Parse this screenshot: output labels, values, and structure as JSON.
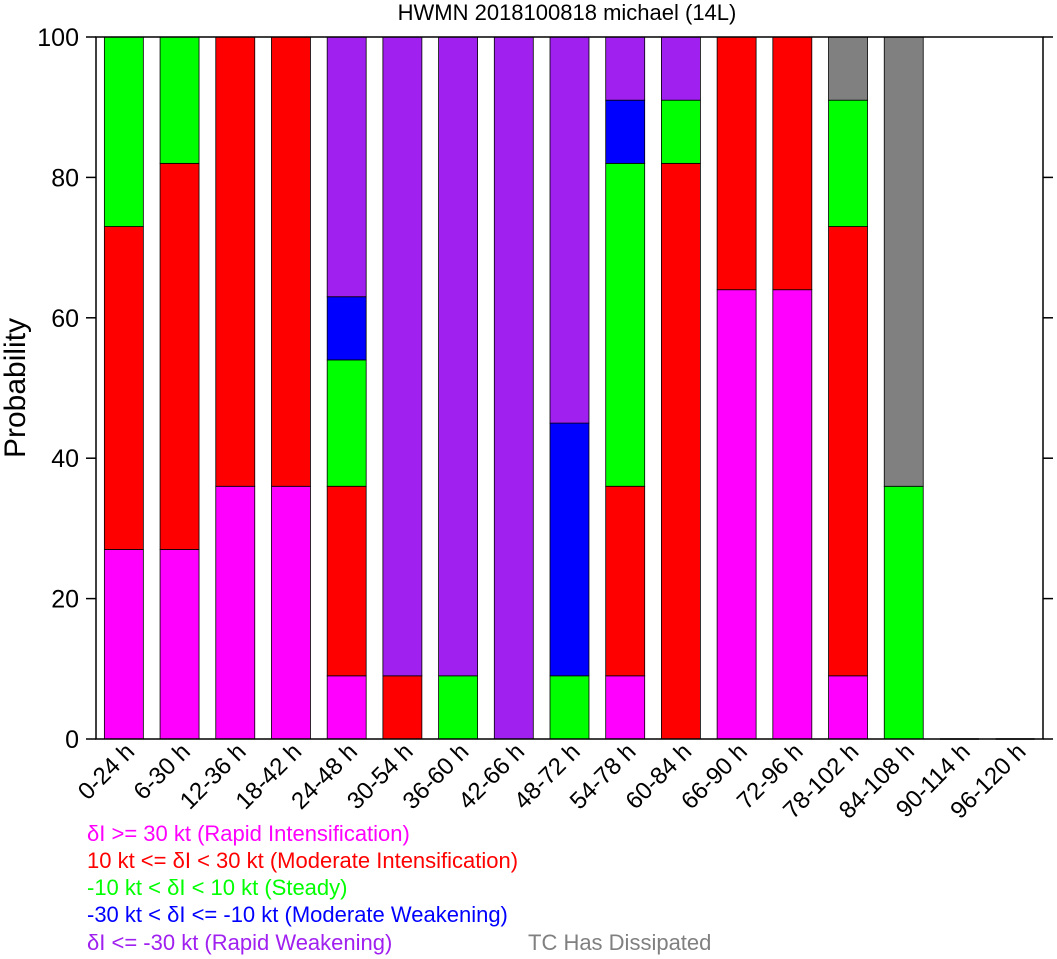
{
  "chart_data": {
    "type": "bar",
    "stacked": true,
    "title": "HWMN 2018100818 michael (14L)",
    "xlabel": "",
    "ylabel": "Probability",
    "ylim": [
      0,
      100
    ],
    "yticks": [
      0,
      20,
      40,
      60,
      80,
      100
    ],
    "grid": false,
    "legend_position": "bottom-left",
    "categories": [
      "0-24 h",
      "6-30 h",
      "12-36 h",
      "18-42 h",
      "24-48 h",
      "30-54 h",
      "36-60 h",
      "42-66 h",
      "48-72 h",
      "54-78 h",
      "60-84 h",
      "66-90 h",
      "72-96 h",
      "78-102 h",
      "84-108 h",
      "90-114 h",
      "96-120 h"
    ],
    "series": [
      {
        "name": "δI >= 30 kt (Rapid Intensification)",
        "color": "#ff00ff",
        "values": [
          27,
          27,
          36,
          36,
          9,
          0,
          0,
          0,
          0,
          9,
          0,
          64,
          64,
          9,
          0,
          0,
          0
        ]
      },
      {
        "name": "10 kt <= δI < 30 kt (Moderate Intensification)",
        "color": "#ff0000",
        "values": [
          46,
          55,
          64,
          64,
          27,
          9,
          0,
          0,
          0,
          27,
          82,
          36,
          36,
          64,
          0,
          0,
          0
        ]
      },
      {
        "name": "-10 kt < δI < 10 kt (Steady)",
        "color": "#00ff00",
        "values": [
          27,
          18,
          0,
          0,
          18,
          0,
          9,
          0,
          9,
          46,
          9,
          0,
          0,
          18,
          36,
          0,
          0
        ]
      },
      {
        "name": "-30 kt < δI <= -10 kt (Moderate Weakening)",
        "color": "#0000ff",
        "values": [
          0,
          0,
          0,
          0,
          9,
          0,
          0,
          0,
          36,
          9,
          0,
          0,
          0,
          0,
          0,
          0,
          0
        ]
      },
      {
        "name": "δI <= -30 kt (Rapid Weakening)",
        "color": "#a020f0",
        "values": [
          0,
          0,
          0,
          0,
          37,
          91,
          91,
          100,
          55,
          9,
          9,
          0,
          0,
          0,
          0,
          0,
          0
        ]
      },
      {
        "name": "TC Has Dissipated",
        "color": "#808080",
        "values": [
          0,
          0,
          0,
          0,
          0,
          0,
          0,
          0,
          0,
          0,
          0,
          0,
          0,
          9,
          64,
          0,
          0
        ]
      }
    ]
  },
  "legend": {
    "ri": "δI >= 30 kt (Rapid Intensification)",
    "mi": "10 kt <= δI < 30 kt (Moderate Intensification)",
    "steady": "-10 kt < δI < 10 kt (Steady)",
    "mw": "-30 kt < δI <= -10 kt (Moderate Weakening)",
    "rw": "δI <= -30 kt (Rapid Weakening)",
    "dissipated": "TC Has Dissipated"
  }
}
